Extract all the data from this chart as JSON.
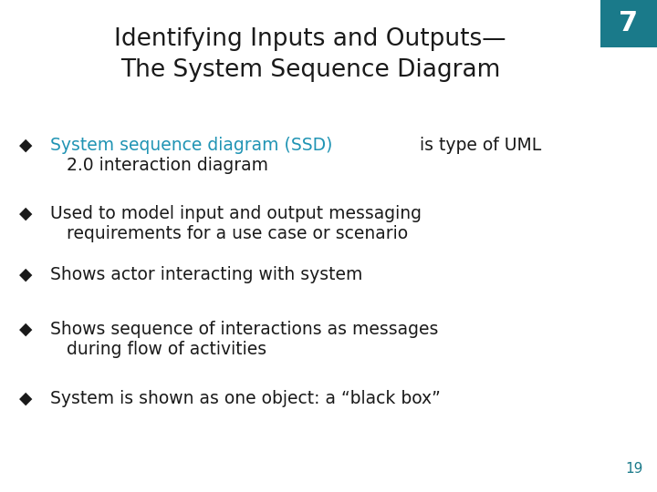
{
  "background_color": "#ffffff",
  "title_line1": "Identifying Inputs and Outputs—",
  "title_line2": "The System Sequence Diagram",
  "title_color": "#1a1a1a",
  "title_fontsize": 19,
  "slide_number": "7",
  "slide_number_bg": "#1a7a8a",
  "slide_number_color": "#ffffff",
  "slide_number_fontsize": 22,
  "page_number": "19",
  "page_number_color": "#1a7a8a",
  "page_number_fontsize": 11,
  "bullet_color": "#1a1a1a",
  "bullet_fontsize": 13.5,
  "highlight_color": "#2094b4",
  "bullet_marker": "◆",
  "bullets": [
    {
      "highlighted": "System sequence diagram (SSD)",
      "rest": " is type of UML",
      "continuation": "2.0 interaction diagram"
    },
    {
      "highlighted": "",
      "rest": "Used to model input and output messaging",
      "continuation": "requirements for a use case or scenario"
    },
    {
      "highlighted": "",
      "rest": "Shows actor interacting with system",
      "continuation": ""
    },
    {
      "highlighted": "",
      "rest": "Shows sequence of interactions as messages",
      "continuation": "during flow of activities"
    },
    {
      "highlighted": "",
      "rest": "System is shown as one object: a “black box”",
      "continuation": ""
    }
  ]
}
